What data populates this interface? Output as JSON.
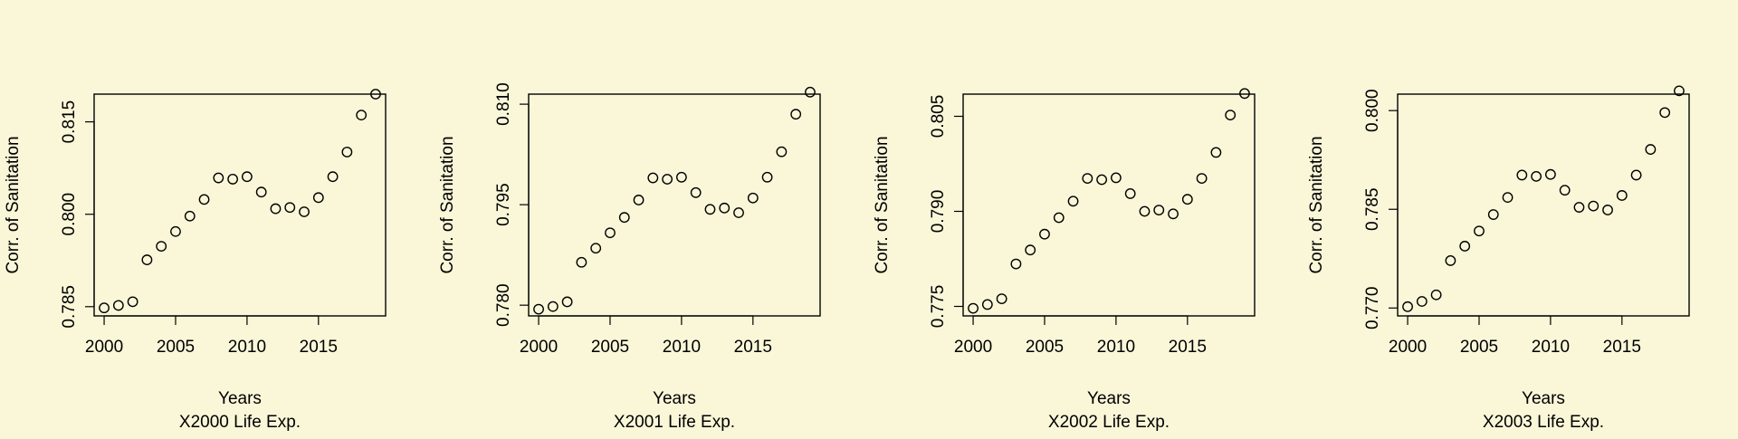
{
  "chart_data": [
    {
      "type": "scatter",
      "xlabel": "Years",
      "ylabel": "Corr. of Sanitation",
      "subtitle": "X2000 Life Exp.",
      "xticks": [
        2000,
        2005,
        2010,
        2015
      ],
      "yticks": [
        "0.785",
        "0.800",
        "0.815"
      ],
      "xlim": [
        1999.3,
        2019.7
      ],
      "ylim": [
        0.7835,
        0.8195
      ],
      "x": [
        2000,
        2001,
        2002,
        2003,
        2004,
        2005,
        2006,
        2007,
        2008,
        2009,
        2010,
        2011,
        2012,
        2013,
        2014,
        2015,
        2016,
        2017,
        2018,
        2019
      ],
      "y": [
        0.7848,
        0.7852,
        0.7858,
        0.7926,
        0.7948,
        0.7972,
        0.7997,
        0.8024,
        0.8059,
        0.8057,
        0.8061,
        0.8036,
        0.8009,
        0.8011,
        0.8004,
        0.8027,
        0.8061,
        0.8101,
        0.8161,
        0.8195
      ]
    },
    {
      "type": "scatter",
      "xlabel": "Years",
      "ylabel": "Corr. of Sanitation",
      "subtitle": "X2001 Life Exp.",
      "xticks": [
        2000,
        2005,
        2010,
        2015
      ],
      "yticks": [
        "0.780",
        "0.795",
        "0.810"
      ],
      "xlim": [
        1999.3,
        2019.7
      ],
      "ylim": [
        0.7784,
        0.8115
      ],
      "x": [
        2000,
        2001,
        2002,
        2003,
        2004,
        2005,
        2006,
        2007,
        2008,
        2009,
        2010,
        2011,
        2012,
        2013,
        2014,
        2015,
        2016,
        2017,
        2018,
        2019
      ],
      "y": [
        0.7794,
        0.7798,
        0.7805,
        0.7864,
        0.7885,
        0.7908,
        0.7931,
        0.7957,
        0.799,
        0.7988,
        0.7991,
        0.7968,
        0.7943,
        0.7945,
        0.7938,
        0.796,
        0.7991,
        0.8029,
        0.8085,
        0.8118
      ]
    },
    {
      "type": "scatter",
      "xlabel": "Years",
      "ylabel": "Corr. of Sanitation",
      "subtitle": "X2002 Life Exp.",
      "xticks": [
        2000,
        2005,
        2010,
        2015
      ],
      "yticks": [
        "0.775",
        "0.790",
        "0.805"
      ],
      "xlim": [
        1999.3,
        2019.7
      ],
      "ylim": [
        0.7735,
        0.8085
      ],
      "x": [
        2000,
        2001,
        2002,
        2003,
        2004,
        2005,
        2006,
        2007,
        2008,
        2009,
        2010,
        2011,
        2012,
        2013,
        2014,
        2015,
        2016,
        2017,
        2018,
        2019
      ],
      "y": [
        0.7747,
        0.7753,
        0.7762,
        0.7817,
        0.7839,
        0.7864,
        0.789,
        0.7916,
        0.7952,
        0.795,
        0.7953,
        0.7928,
        0.79,
        0.7902,
        0.7896,
        0.7919,
        0.7952,
        0.7993,
        0.8052,
        0.8086
      ]
    },
    {
      "type": "scatter",
      "xlabel": "Years",
      "ylabel": "Corr. of Sanitation",
      "subtitle": "X2003 Life Exp.",
      "xticks": [
        2000,
        2005,
        2010,
        2015
      ],
      "yticks": [
        "0.770",
        "0.785",
        "0.800"
      ],
      "xlim": [
        1999.3,
        2019.7
      ],
      "ylim": [
        0.7688,
        0.8025
      ],
      "x": [
        2000,
        2001,
        2002,
        2003,
        2004,
        2005,
        2006,
        2007,
        2008,
        2009,
        2010,
        2011,
        2012,
        2013,
        2014,
        2015,
        2016,
        2017,
        2018,
        2019
      ],
      "y": [
        0.7702,
        0.771,
        0.772,
        0.7772,
        0.7794,
        0.7817,
        0.7842,
        0.7868,
        0.7902,
        0.79,
        0.7903,
        0.7879,
        0.7853,
        0.7855,
        0.7849,
        0.7871,
        0.7902,
        0.7941,
        0.7997,
        0.803
      ]
    }
  ]
}
